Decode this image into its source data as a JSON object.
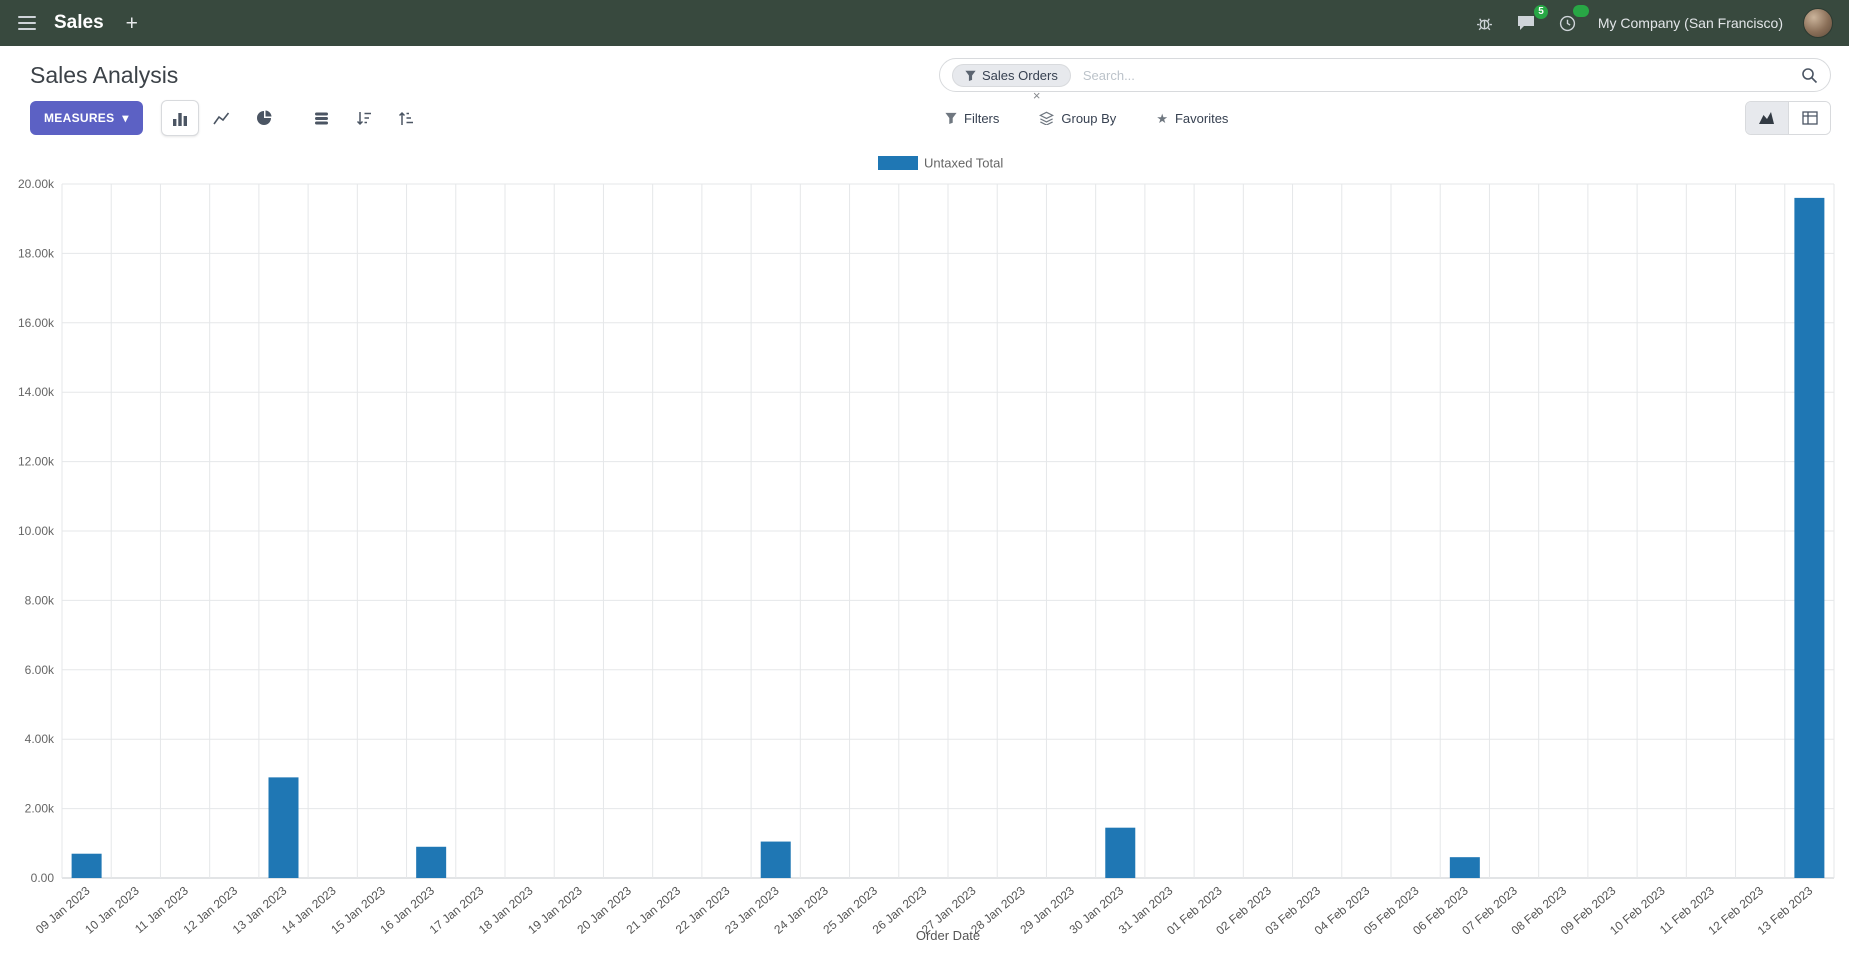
{
  "navbar": {
    "app_name": "Sales",
    "plus_label": "+",
    "company": "My Company (San Francisco)",
    "messages_count": "5"
  },
  "control_panel": {
    "title": "Sales Analysis",
    "measures_label": "MEASURES",
    "measures_caret": "▾",
    "filters_label": "Filters",
    "group_by_label": "Group By",
    "favorites_label": "Favorites",
    "favorites_star": "★",
    "search": {
      "facet_label": "Sales Orders",
      "facet_remove": "×",
      "placeholder": "Search..."
    }
  },
  "colors": {
    "navbar_bg": "#38493e",
    "primary_button": "#5c61c4",
    "bar": "#1f77b4",
    "badge_green": "#28a745"
  },
  "chart_data": {
    "type": "bar",
    "title": "",
    "xlabel": "Order Date",
    "ylabel": "",
    "ylim": [
      0,
      20000
    ],
    "yticks": [
      "0.00",
      "2.00k",
      "4.00k",
      "6.00k",
      "8.00k",
      "10.00k",
      "12.00k",
      "14.00k",
      "16.00k",
      "18.00k",
      "20.00k"
    ],
    "grid": true,
    "legend_position": "top",
    "bar_color": "#1f77b4",
    "categories": [
      "09 Jan 2023",
      "10 Jan 2023",
      "11 Jan 2023",
      "12 Jan 2023",
      "13 Jan 2023",
      "14 Jan 2023",
      "15 Jan 2023",
      "16 Jan 2023",
      "17 Jan 2023",
      "18 Jan 2023",
      "19 Jan 2023",
      "20 Jan 2023",
      "21 Jan 2023",
      "22 Jan 2023",
      "23 Jan 2023",
      "24 Jan 2023",
      "25 Jan 2023",
      "26 Jan 2023",
      "27 Jan 2023",
      "28 Jan 2023",
      "29 Jan 2023",
      "30 Jan 2023",
      "31 Jan 2023",
      "01 Feb 2023",
      "02 Feb 2023",
      "03 Feb 2023",
      "04 Feb 2023",
      "05 Feb 2023",
      "06 Feb 2023",
      "07 Feb 2023",
      "08 Feb 2023",
      "09 Feb 2023",
      "10 Feb 2023",
      "11 Feb 2023",
      "12 Feb 2023",
      "13 Feb 2023"
    ],
    "series": [
      {
        "name": "Untaxed Total",
        "values": [
          700,
          0,
          0,
          0,
          2900,
          0,
          0,
          900,
          0,
          0,
          0,
          0,
          0,
          0,
          1050,
          0,
          0,
          0,
          0,
          0,
          0,
          1450,
          0,
          0,
          0,
          0,
          0,
          0,
          600,
          0,
          0,
          0,
          0,
          0,
          0,
          19600
        ]
      }
    ]
  }
}
